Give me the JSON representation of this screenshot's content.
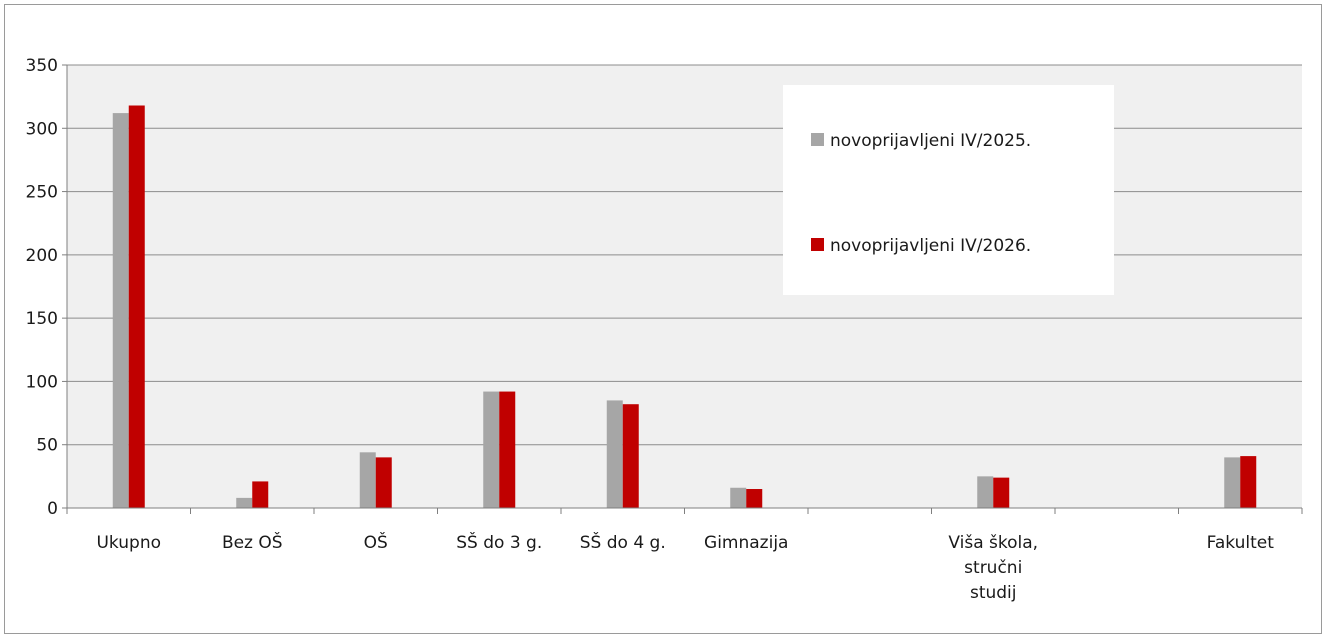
{
  "chart_data": {
    "type": "bar",
    "title": "",
    "xlabel": "",
    "ylabel": "",
    "ylim": [
      0,
      350
    ],
    "yticks": [
      0,
      50,
      100,
      150,
      200,
      250,
      300,
      350
    ],
    "grid": true,
    "legend_position": "top-right",
    "categories": [
      "Ukupno",
      "Bez OŠ",
      "OŠ",
      "SŠ do 3 g.",
      "SŠ do 4 g.",
      "Gimnazija",
      "",
      "Viša škola, stručni studij",
      "",
      "Fakultet"
    ],
    "category_label_lines": [
      [
        "Ukupno"
      ],
      [
        "Bez OŠ"
      ],
      [
        "OŠ"
      ],
      [
        "SŠ do 3 g."
      ],
      [
        "SŠ do 4 g."
      ],
      [
        "Gimnazija"
      ],
      [],
      [
        "Viša škola,",
        "stručni",
        "studij"
      ],
      [],
      [
        "Fakultet"
      ]
    ],
    "series": [
      {
        "name": "novoprijavljeni IV/2025.",
        "color": "#a6a6a6",
        "values": [
          312,
          8,
          44,
          92,
          85,
          16,
          null,
          25,
          null,
          40
        ]
      },
      {
        "name": "novoprijavljeni IV/2026.",
        "color": "#c00000",
        "values": [
          318,
          21,
          40,
          92,
          82,
          15,
          null,
          24,
          null,
          41
        ]
      }
    ]
  }
}
